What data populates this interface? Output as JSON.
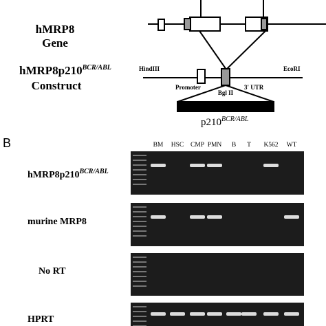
{
  "panel_a": {
    "gene_label": [
      "hMRP8",
      "Gene"
    ],
    "construct_label": {
      "text": "hMRP8p210",
      "sup": "BCR/ABL",
      "second_line": "Construct"
    },
    "sites": {
      "left": "HindIII",
      "right": "EcoRI",
      "middle": "Bgl II"
    },
    "regions": {
      "promoter": "Promoter",
      "utr": "3' UTR"
    },
    "insert": {
      "text": "p210",
      "sup": "BCR/ABL"
    }
  },
  "panel_b": {
    "label": "B",
    "lanes": [
      "BM",
      "HSC",
      "CMP",
      "PMN",
      "B",
      "T",
      "K562",
      "WT"
    ],
    "rows": [
      {
        "text": "hMRP8p210",
        "sup": "BCR/ABL"
      },
      {
        "text": "murine MRP8"
      },
      {
        "text": "No RT"
      },
      {
        "text": "HPRT"
      }
    ]
  }
}
